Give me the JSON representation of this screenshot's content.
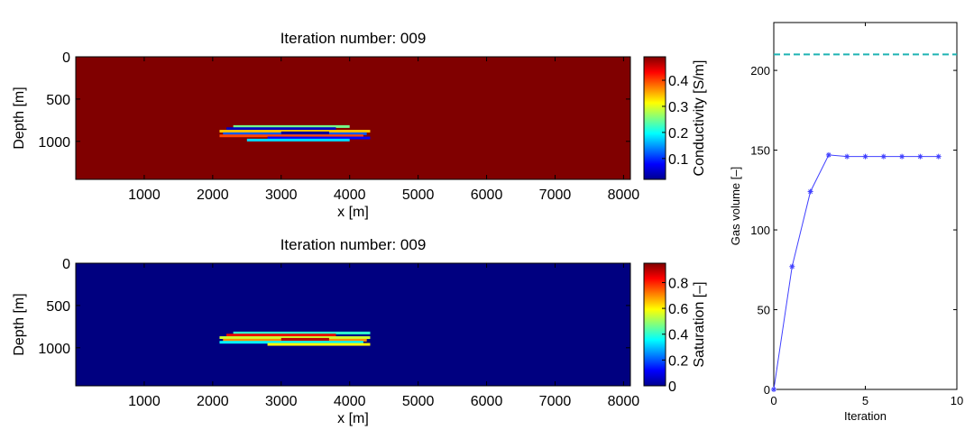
{
  "chart_data": [
    {
      "type": "heatmap",
      "title": "Iteration number: 009",
      "xlabel": "x [m]",
      "ylabel": "Depth [m]",
      "xlim": [
        0,
        8100
      ],
      "ylim": [
        1450,
        0
      ],
      "y_reversed": true,
      "xticks": [
        1000,
        2000,
        3000,
        4000,
        5000,
        6000,
        7000,
        8000
      ],
      "yticks": [
        0,
        500,
        1000
      ],
      "colormap": "jet",
      "background_value": 0.49,
      "colorbar": {
        "label": "Conductivity [S/m]",
        "min": 0.02,
        "max": 0.49,
        "ticks": [
          0.1,
          0.2,
          0.3,
          0.4
        ]
      },
      "layers": [
        {
          "x0": 2300,
          "x1": 4000,
          "depth": 825,
          "value": 0.25
        },
        {
          "x0": 2200,
          "x1": 3800,
          "depth": 850,
          "value": 0.05
        },
        {
          "x0": 2100,
          "x1": 4300,
          "depth": 880,
          "value": 0.34
        },
        {
          "x0": 2150,
          "x1": 4250,
          "depth": 910,
          "value": 0.12
        },
        {
          "x0": 2100,
          "x1": 4200,
          "depth": 935,
          "value": 0.4
        },
        {
          "x0": 2800,
          "x1": 4300,
          "depth": 960,
          "value": 0.08
        },
        {
          "x0": 2500,
          "x1": 4000,
          "depth": 985,
          "value": 0.18
        },
        {
          "x0": 3000,
          "x1": 3700,
          "depth": 900,
          "value": 0.03
        }
      ]
    },
    {
      "type": "heatmap",
      "title": "Iteration number: 009",
      "xlabel": "x [m]",
      "ylabel": "Depth [m]",
      "xlim": [
        0,
        8100
      ],
      "ylim": [
        1450,
        0
      ],
      "y_reversed": true,
      "xticks": [
        1000,
        2000,
        3000,
        4000,
        5000,
        6000,
        7000,
        8000
      ],
      "yticks": [
        0,
        500,
        1000
      ],
      "colormap": "jet",
      "background_value": 0.0,
      "colorbar": {
        "label": "Saturation [–]",
        "min": 0.0,
        "max": 0.95,
        "ticks": [
          0,
          0.2,
          0.4,
          0.6,
          0.8
        ]
      },
      "layers": [
        {
          "x0": 2300,
          "x1": 4300,
          "depth": 825,
          "value": 0.4
        },
        {
          "x0": 2200,
          "x1": 3800,
          "depth": 850,
          "value": 0.85
        },
        {
          "x0": 2100,
          "x1": 4300,
          "depth": 880,
          "value": 0.55
        },
        {
          "x0": 2150,
          "x1": 4250,
          "depth": 910,
          "value": 0.7
        },
        {
          "x0": 2100,
          "x1": 4200,
          "depth": 935,
          "value": 0.35
        },
        {
          "x0": 2800,
          "x1": 4300,
          "depth": 960,
          "value": 0.6
        },
        {
          "x0": 3000,
          "x1": 3700,
          "depth": 900,
          "value": 0.9
        }
      ]
    },
    {
      "type": "line",
      "title": "",
      "xlabel": "Iteration",
      "ylabel": "Gas volume [–]",
      "xlim": [
        0,
        10
      ],
      "ylim": [
        0,
        230
      ],
      "xticks": [
        0,
        5,
        10
      ],
      "yticks": [
        0,
        50,
        100,
        150,
        200
      ],
      "series": [
        {
          "x": [
            0,
            1,
            2,
            3,
            4,
            5,
            6,
            7,
            8,
            9
          ],
          "y": [
            0,
            77,
            124,
            147,
            146,
            146,
            146,
            146,
            146,
            146
          ],
          "color": "#4040ff",
          "marker": "*"
        }
      ],
      "reference_line": {
        "y": 210,
        "color": "#1fb3b3",
        "style": "dashed"
      }
    }
  ]
}
